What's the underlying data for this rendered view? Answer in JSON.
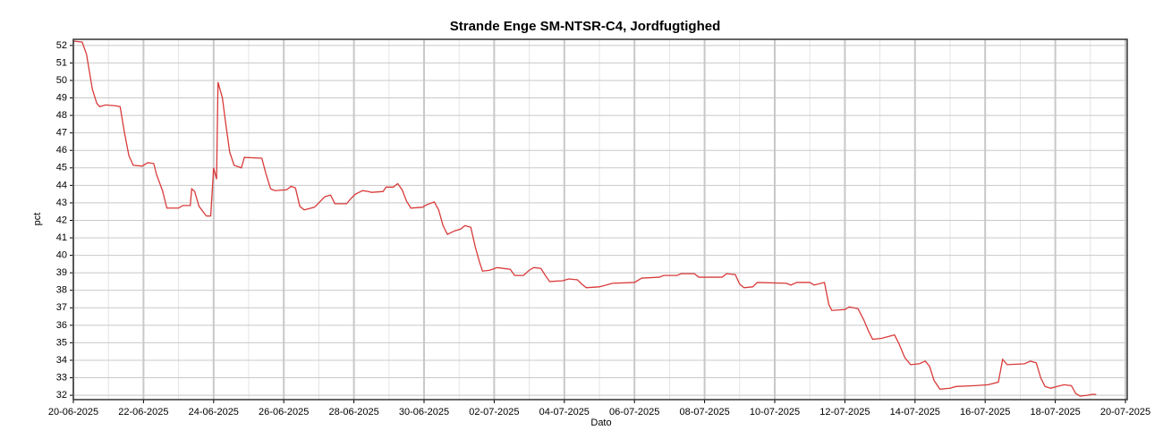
{
  "chart_data": {
    "type": "line",
    "title": "Strande Enge SM-NTSR-C4, Jordfugtighed",
    "xlabel": "Dato",
    "ylabel": "pct",
    "color": "#d93a3a",
    "grid": true,
    "minor_grid": true,
    "xlim": [
      "2025-06-20",
      "2025-07-20"
    ],
    "xticks": [
      {
        "value": "2025-06-20",
        "label": "20-06-2025"
      },
      {
        "value": "2025-06-22",
        "label": "22-06-2025"
      },
      {
        "value": "2025-06-24",
        "label": "24-06-2025"
      },
      {
        "value": "2025-06-26",
        "label": "26-06-2025"
      },
      {
        "value": "2025-06-28",
        "label": "28-06-2025"
      },
      {
        "value": "2025-06-30",
        "label": "30-06-2025"
      },
      {
        "value": "2025-07-02",
        "label": "02-07-2025"
      },
      {
        "value": "2025-07-04",
        "label": "04-07-2025"
      },
      {
        "value": "2025-07-06",
        "label": "06-07-2025"
      },
      {
        "value": "2025-07-08",
        "label": "08-07-2025"
      },
      {
        "value": "2025-07-10",
        "label": "10-07-2025"
      },
      {
        "value": "2025-07-12",
        "label": "12-07-2025"
      },
      {
        "value": "2025-07-14",
        "label": "14-07-2025"
      },
      {
        "value": "2025-07-16",
        "label": "16-07-2025"
      },
      {
        "value": "2025-07-18",
        "label": "18-07-2025"
      },
      {
        "value": "2025-07-20",
        "label": "20-07-2025"
      }
    ],
    "ylim": [
      31.75,
      52.35
    ],
    "yticks": [
      32,
      33,
      34,
      35,
      36,
      37,
      38,
      39,
      40,
      41,
      42,
      43,
      44,
      45,
      46,
      47,
      48,
      49,
      50,
      51,
      52
    ],
    "x": [
      "2025-06-20T00:00",
      "2025-06-20T06:00",
      "2025-06-20T09:00",
      "2025-06-20T11:00",
      "2025-06-20T13:00",
      "2025-06-20T16:00",
      "2025-06-20T18:00",
      "2025-06-20T22:00",
      "2025-06-21T05:00",
      "2025-06-21T08:00",
      "2025-06-21T11:00",
      "2025-06-21T14:00",
      "2025-06-21T17:00",
      "2025-06-21T23:00",
      "2025-06-22T03:00",
      "2025-06-22T07:00",
      "2025-06-22T09:00",
      "2025-06-22T13:00",
      "2025-06-22T16:00",
      "2025-06-23T00:00",
      "2025-06-23T03:00",
      "2025-06-23T08:00",
      "2025-06-23T09:00",
      "2025-06-23T11:00",
      "2025-06-23T14:00",
      "2025-06-23T19:00",
      "2025-06-23T22:00",
      "2025-06-24T00:00",
      "2025-06-24T02:00",
      "2025-06-24T03:00",
      "2025-06-24T06:00",
      "2025-06-24T08:00",
      "2025-06-24T11:00",
      "2025-06-24T14:00",
      "2025-06-24T19:00",
      "2025-06-24T21:00",
      "2025-06-25T09:00",
      "2025-06-25T12:00",
      "2025-06-25T15:00",
      "2025-06-25T18:00",
      "2025-06-26T02:00",
      "2025-06-26T05:00",
      "2025-06-26T08:00",
      "2025-06-26T11:00",
      "2025-06-26T14:00",
      "2025-06-26T21:00",
      "2025-06-27T00:00",
      "2025-06-27T04:00",
      "2025-06-27T08:00",
      "2025-06-27T11:00",
      "2025-06-27T19:00",
      "2025-06-27T22:00",
      "2025-06-28T01:00",
      "2025-06-28T06:00",
      "2025-06-28T10:00",
      "2025-06-28T12:00",
      "2025-06-28T20:00",
      "2025-06-28T22:00",
      "2025-06-29T03:00",
      "2025-06-29T06:00",
      "2025-06-29T09:00",
      "2025-06-29T12:00",
      "2025-06-29T15:00",
      "2025-06-29T23:00",
      "2025-06-30T02:00",
      "2025-06-30T07:00",
      "2025-06-30T10:00",
      "2025-06-30T13:00",
      "2025-06-30T16:00",
      "2025-06-30T21:00",
      "2025-07-01T01:00",
      "2025-07-01T04:00",
      "2025-07-01T08:00",
      "2025-07-01T11:00",
      "2025-07-01T14:00",
      "2025-07-01T16:00",
      "2025-07-01T21:00",
      "2025-07-02T02:00",
      "2025-07-02T11:00",
      "2025-07-02T14:00",
      "2025-07-02T20:00",
      "2025-07-03T00:00",
      "2025-07-03T03:00",
      "2025-07-03T08:00",
      "2025-07-03T11:00",
      "2025-07-03T14:00",
      "2025-07-03T23:00",
      "2025-07-04T03:00",
      "2025-07-04T09:00",
      "2025-07-04T12:00",
      "2025-07-04T15:00",
      "2025-07-05T00:00",
      "2025-07-05T09:00",
      "2025-07-06T00:00",
      "2025-07-06T05:00",
      "2025-07-06T17:00",
      "2025-07-06T20:00",
      "2025-07-07T05:00",
      "2025-07-07T08:00",
      "2025-07-07T17:00",
      "2025-07-07T20:00",
      "2025-07-08T12:00",
      "2025-07-08T15:00",
      "2025-07-08T21:00",
      "2025-07-09T00:00",
      "2025-07-09T03:00",
      "2025-07-09T09:00",
      "2025-07-09T12:00",
      "2025-07-10T08:00",
      "2025-07-10T11:00",
      "2025-07-10T15:00",
      "2025-07-11T00:00",
      "2025-07-11T03:00",
      "2025-07-11T10:00",
      "2025-07-11T13:00",
      "2025-07-11T15:00",
      "2025-07-12T00:00",
      "2025-07-12T03:00",
      "2025-07-12T09:00",
      "2025-07-12T13:00",
      "2025-07-12T16:00",
      "2025-07-12T19:00",
      "2025-07-13T01:00",
      "2025-07-13T10:00",
      "2025-07-13T13:00",
      "2025-07-13T17:00",
      "2025-07-13T21:00",
      "2025-07-14T03:00",
      "2025-07-14T07:00",
      "2025-07-14T10:00",
      "2025-07-14T13:00",
      "2025-07-14T17:00",
      "2025-07-15T00:00",
      "2025-07-15T04:00",
      "2025-07-15T17:00",
      "2025-07-16T02:00",
      "2025-07-16T09:00",
      "2025-07-16T12:00",
      "2025-07-16T15:00",
      "2025-07-17T03:00",
      "2025-07-17T07:00",
      "2025-07-17T11:00",
      "2025-07-17T14:00",
      "2025-07-17T17:00",
      "2025-07-17T21:00",
      "2025-07-18T01:00",
      "2025-07-18T06:00",
      "2025-07-18T11:00",
      "2025-07-18T14:00",
      "2025-07-18T17:00",
      "2025-07-18T22:00",
      "2025-07-19T01:00",
      "2025-07-19T04:00"
    ],
    "values": [
      52.25,
      52.2,
      51.5,
      50.5,
      49.5,
      48.7,
      48.5,
      48.6,
      48.55,
      48.5,
      47.0,
      45.7,
      45.15,
      45.1,
      45.3,
      45.25,
      44.6,
      43.7,
      42.7,
      42.7,
      42.85,
      42.85,
      43.8,
      43.65,
      42.8,
      42.25,
      42.25,
      45.0,
      44.35,
      49.9,
      49.0,
      47.7,
      45.9,
      45.15,
      45.0,
      45.6,
      45.55,
      44.6,
      43.8,
      43.7,
      43.75,
      43.95,
      43.85,
      42.8,
      42.6,
      42.75,
      43.0,
      43.35,
      43.45,
      42.95,
      42.95,
      43.25,
      43.5,
      43.7,
      43.65,
      43.6,
      43.65,
      43.9,
      43.9,
      44.1,
      43.75,
      43.1,
      42.7,
      42.75,
      42.9,
      43.05,
      42.6,
      41.7,
      41.2,
      41.4,
      41.5,
      41.7,
      41.6,
      40.5,
      39.6,
      39.1,
      39.15,
      39.3,
      39.2,
      38.85,
      38.85,
      39.15,
      39.3,
      39.25,
      38.85,
      38.5,
      38.55,
      38.65,
      38.6,
      38.35,
      38.15,
      38.2,
      38.4,
      38.45,
      38.7,
      38.75,
      38.85,
      38.85,
      38.95,
      38.95,
      38.75,
      38.75,
      38.95,
      38.9,
      38.35,
      38.15,
      38.2,
      38.45,
      38.4,
      38.3,
      38.45,
      38.45,
      38.3,
      38.45,
      37.2,
      36.85,
      36.9,
      37.05,
      36.95,
      36.3,
      35.7,
      35.2,
      35.25,
      35.45,
      34.95,
      34.15,
      33.75,
      33.8,
      33.95,
      33.65,
      32.85,
      32.35,
      32.4,
      32.5,
      32.55,
      32.6,
      32.75,
      34.05,
      33.75,
      33.8,
      33.95,
      33.85,
      33.0,
      32.5,
      32.4,
      32.5,
      32.6,
      32.55,
      32.1,
      31.95,
      32.0,
      32.05,
      32.05
    ]
  }
}
